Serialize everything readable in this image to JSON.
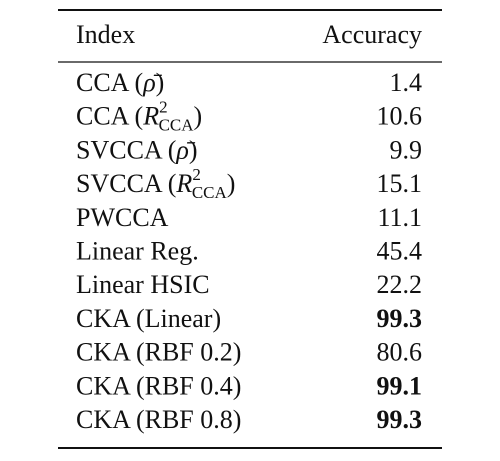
{
  "table": {
    "header": [
      "Index",
      "Accuracy"
    ],
    "rows": [
      {
        "index": [
          {
            "text": "CCA ("
          },
          {
            "text": "ρ̄",
            "style": "italic"
          },
          {
            "text": ")"
          }
        ],
        "accuracy": 1.4,
        "bold": false
      },
      {
        "index": [
          {
            "text": "CCA ("
          },
          {
            "text": "R",
            "style": "italic"
          },
          {
            "text": "2",
            "style": "sup"
          },
          {
            "text": "CCA",
            "style": "sub"
          },
          {
            "text": ")"
          }
        ],
        "accuracy": 10.6,
        "bold": false
      },
      {
        "index": [
          {
            "text": "SVCCA ("
          },
          {
            "text": "ρ̄",
            "style": "italic"
          },
          {
            "text": ")"
          }
        ],
        "accuracy": 9.9,
        "bold": false
      },
      {
        "index": [
          {
            "text": "SVCCA ("
          },
          {
            "text": "R",
            "style": "italic"
          },
          {
            "text": "2",
            "style": "sup"
          },
          {
            "text": "CCA",
            "style": "sub"
          },
          {
            "text": ")"
          }
        ],
        "accuracy": 15.1,
        "bold": false
      },
      {
        "index": [
          {
            "text": "PWCCA"
          }
        ],
        "accuracy": 11.1,
        "bold": false
      },
      {
        "index": [
          {
            "text": "Linear Reg."
          }
        ],
        "accuracy": 45.4,
        "bold": false
      },
      {
        "index": [
          {
            "text": "Linear HSIC"
          }
        ],
        "accuracy": 22.2,
        "bold": false
      },
      {
        "index": [
          {
            "text": "CKA (Linear)"
          }
        ],
        "accuracy": 99.3,
        "bold": true
      },
      {
        "index": [
          {
            "text": "CKA (RBF 0.2)"
          }
        ],
        "accuracy": 80.6,
        "bold": false
      },
      {
        "index": [
          {
            "text": "CKA (RBF 0.4)"
          }
        ],
        "accuracy": 99.1,
        "bold": true
      },
      {
        "index": [
          {
            "text": "CKA (RBF 0.8)"
          }
        ],
        "accuracy": 99.3,
        "bold": true
      }
    ]
  }
}
